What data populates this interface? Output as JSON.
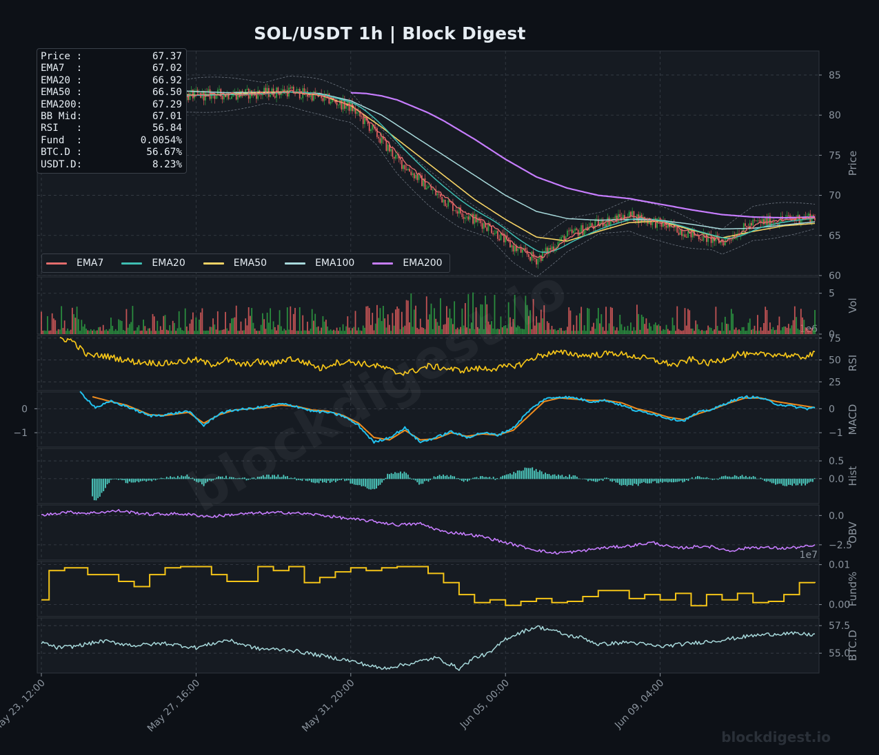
{
  "title": "SOL/USDT  1h  |  Block Digest",
  "footer": "blockdigest.io",
  "watermark": "blockdigest.io",
  "colors": {
    "background": "#0d1117",
    "panel": "#161b22",
    "grid": "#3a4049",
    "axis_text": "#8b949e",
    "candle_up": "#2ea043",
    "candle_down": "#e05d5d",
    "ema7": "#e46d6d",
    "ema20": "#3fbfb3",
    "ema50": "#f6d365",
    "ema100": "#a8dadc",
    "ema200": "#c77dff",
    "rsi": "#f5c518",
    "macd": "#22c1ee",
    "signal": "#f08c1e",
    "hist": "#4fd1c5",
    "obv": "#c77dff",
    "funding": "#f5c518",
    "btcd": "#a8dadc"
  },
  "info": [
    {
      "label": "Price :",
      "value": "67.37"
    },
    {
      "label": "EMA7  :",
      "value": "67.02"
    },
    {
      "label": "EMA20 :",
      "value": "66.92"
    },
    {
      "label": "EMA50 :",
      "value": "66.50"
    },
    {
      "label": "EMA200:",
      "value": "67.29"
    },
    {
      "label": "BB Mid:",
      "value": "67.01"
    },
    {
      "label": "RSI   :",
      "value": "56.84"
    },
    {
      "label": "Fund  :",
      "value": "0.0054%"
    },
    {
      "label": "BTC.D :",
      "value": "56.67%"
    },
    {
      "label": "USDT.D:",
      "value": "8.23%"
    }
  ],
  "legend": [
    {
      "label": "EMA7",
      "color": "#e46d6d"
    },
    {
      "label": "EMA20",
      "color": "#3fbfb3"
    },
    {
      "label": "EMA50",
      "color": "#f6d365"
    },
    {
      "label": "EMA100",
      "color": "#a8dadc"
    },
    {
      "label": "EMA200",
      "color": "#c77dff"
    }
  ],
  "chart_data": {
    "type": "line",
    "x_ticks": [
      "May 23, 12:00",
      "May 27, 16:00",
      "May 31, 20:00",
      "Jun 05, 00:00",
      "Jun 09, 04:00"
    ],
    "x_range_hours": [
      0,
      500
    ],
    "panels": [
      {
        "name": "price",
        "ylabel": "Price",
        "ylim": [
          60,
          88
        ],
        "ticks": [
          "60",
          "65",
          "70",
          "75",
          "80",
          "85"
        ],
        "tick_values": [
          60,
          65,
          70,
          75,
          80,
          85
        ],
        "series": [
          {
            "name": "Close",
            "x": [
              0,
              20,
              40,
              60,
              80,
              100,
              120,
              140,
              160,
              180,
              200,
              215,
              230,
              250,
              270,
              290,
              305,
              320,
              340,
              360,
              380,
              400,
              420,
              440,
              460,
              480,
              500
            ],
            "values": [
              84.5,
              84.8,
              84.0,
              83.5,
              82.2,
              82.5,
              82.6,
              82.7,
              83.0,
              82.3,
              81.0,
              78.0,
              74.5,
              71.0,
              68.0,
              66.0,
              63.5,
              62.0,
              65.0,
              66.5,
              67.5,
              66.5,
              65.2,
              64.2,
              66.5,
              67.0,
              67.37
            ]
          },
          {
            "name": "EMA50",
            "x": [
              0,
              20,
              40,
              60,
              80,
              100,
              120,
              140,
              160,
              180,
              200,
              220,
              240,
              260,
              280,
              300,
              320,
              340,
              360,
              380,
              400,
              420,
              440,
              460,
              480,
              500
            ],
            "values": [
              84.4,
              84.5,
              84.2,
              83.3,
              82.6,
              82.5,
              82.6,
              82.8,
              82.9,
              82.5,
              81.2,
              78.5,
              75.5,
              72.5,
              69.5,
              67.0,
              64.8,
              64.3,
              65.5,
              66.6,
              66.8,
              65.7,
              64.7,
              65.5,
              66.2,
              66.5
            ]
          },
          {
            "name": "EMA100",
            "x": [
              0,
              40,
              80,
              120,
              160,
              180,
              200,
              220,
              240,
              260,
              280,
              300,
              320,
              340,
              360,
              380,
              400,
              420,
              440,
              460,
              480,
              500
            ],
            "values": [
              84.6,
              84.4,
              83.1,
              82.8,
              82.9,
              82.7,
              81.8,
              80.0,
              77.5,
              75.0,
              72.5,
              70.0,
              68.0,
              67.1,
              66.9,
              67.0,
              66.9,
              66.4,
              65.8,
              65.9,
              66.3,
              66.7
            ]
          },
          {
            "name": "EMA200",
            "x": [
              200,
              210,
              220,
              230,
              240,
              250,
              260,
              280,
              300,
              320,
              340,
              360,
              380,
              400,
              420,
              440,
              460,
              480,
              500
            ],
            "values": [
              82.8,
              82.7,
              82.4,
              81.9,
              81.1,
              80.3,
              79.3,
              77.0,
              74.5,
              72.3,
              70.9,
              70.0,
              69.6,
              68.9,
              68.2,
              67.6,
              67.3,
              67.2,
              67.29
            ]
          }
        ]
      },
      {
        "name": "volume",
        "ylabel": "Vol",
        "unit_label": "1e6",
        "ylim": [
          0,
          7
        ],
        "ticks": [
          "0",
          "5"
        ],
        "tick_values": [
          0,
          5
        ]
      },
      {
        "name": "rsi",
        "ylabel": "RSI",
        "ylim": [
          15,
          78
        ],
        "ticks": [
          "25",
          "50",
          "75"
        ],
        "tick_values": [
          25,
          50,
          75
        ],
        "series": [
          {
            "name": "RSI",
            "x": [
              12,
              20,
              30,
              40,
              60,
              80,
              100,
              110,
              120,
              130,
              140,
              150,
              160,
              175,
              180,
              190,
              200,
              210,
              220,
              230,
              240,
              250,
              260,
              270,
              280,
              290,
              300,
              310,
              320,
              330,
              340,
              350,
              360,
              370,
              380,
              390,
              400,
              410,
              420,
              430,
              440,
              450,
              460,
              470,
              480,
              490,
              500
            ],
            "values": [
              75,
              72,
              55,
              55,
              48,
              46,
              50,
              45,
              50,
              44,
              48,
              45,
              52,
              45,
              40,
              47,
              48,
              45,
              42,
              35,
              37,
              43,
              41,
              38,
              40,
              40,
              42,
              45,
              54,
              58,
              58,
              55,
              56,
              58,
              55,
              52,
              48,
              44,
              51,
              46,
              50,
              57,
              55,
              57,
              56,
              53,
              56.84
            ]
          }
        ]
      },
      {
        "name": "macd",
        "ylabel": "MACD",
        "ylim": [
          -1.6,
          0.7
        ],
        "ticks": [
          "−1",
          "0"
        ],
        "tick_values": [
          -1,
          0
        ],
        "series": [
          {
            "name": "MACD",
            "x": [
              25,
              35,
              45,
              55,
              70,
              80,
              95,
              105,
              115,
              125,
              135,
              145,
              155,
              165,
              175,
              185,
              195,
              205,
              215,
              225,
              235,
              245,
              255,
              265,
              275,
              285,
              295,
              305,
              315,
              325,
              335,
              345,
              355,
              365,
              375,
              385,
              395,
              405,
              415,
              425,
              435,
              445,
              455,
              465,
              475,
              485,
              495,
              500
            ],
            "values": [
              0.7,
              0.05,
              0.3,
              0.1,
              -0.3,
              -0.25,
              -0.1,
              -0.7,
              -0.2,
              -0.05,
              0.0,
              0.1,
              0.2,
              0.1,
              -0.1,
              -0.15,
              -0.3,
              -0.7,
              -1.4,
              -1.2,
              -0.8,
              -1.4,
              -1.2,
              -0.95,
              -1.2,
              -1.0,
              -1.1,
              -0.8,
              -0.1,
              0.4,
              0.5,
              0.45,
              0.3,
              0.35,
              0.15,
              -0.1,
              -0.2,
              -0.4,
              -0.5,
              -0.15,
              0.0,
              0.3,
              0.5,
              0.45,
              0.2,
              0.1,
              0.0,
              0.05
            ]
          },
          {
            "name": "Signal",
            "x": [
              33,
              45,
              55,
              70,
              80,
              95,
              105,
              115,
              125,
              135,
              145,
              155,
              165,
              175,
              185,
              195,
              205,
              215,
              225,
              235,
              245,
              255,
              265,
              275,
              285,
              295,
              305,
              315,
              325,
              335,
              345,
              355,
              365,
              375,
              385,
              395,
              405,
              415,
              425,
              435,
              445,
              455,
              465,
              475,
              485,
              495,
              500
            ],
            "values": [
              0.5,
              0.3,
              0.15,
              -0.25,
              -0.28,
              -0.15,
              -0.6,
              -0.25,
              -0.05,
              0.0,
              0.05,
              0.15,
              0.1,
              -0.05,
              -0.1,
              -0.28,
              -0.6,
              -1.2,
              -1.3,
              -0.9,
              -1.3,
              -1.25,
              -1.0,
              -1.15,
              -1.05,
              -1.1,
              -0.9,
              -0.3,
              0.3,
              0.45,
              0.4,
              0.35,
              0.35,
              0.25,
              0.0,
              -0.15,
              -0.35,
              -0.45,
              -0.2,
              0.0,
              0.25,
              0.45,
              0.45,
              0.3,
              0.2,
              0.1,
              0.05
            ]
          }
        ]
      },
      {
        "name": "histogram",
        "ylabel": "Hist",
        "ylim": [
          -0.7,
          0.85
        ],
        "ticks": [
          "0.0",
          "0.5"
        ],
        "tick_values": [
          0,
          0.5
        ]
      },
      {
        "name": "obv",
        "ylabel": "OBV",
        "unit_label": "1e7",
        "ylim": [
          -3.8,
          0.9
        ],
        "ticks": [
          "−2.5",
          "0.0"
        ],
        "tick_values": [
          -2.5,
          0
        ],
        "series": [
          {
            "name": "OBV",
            "x": [
              0,
              15,
              30,
              50,
              70,
              90,
              110,
              125,
              140,
              160,
              180,
              200,
              215,
              230,
              245,
              260,
              270,
              285,
              300,
              315,
              330,
              345,
              360,
              380,
              395,
              410,
              430,
              445,
              460,
              480,
              500
            ],
            "values": [
              0.0,
              0.3,
              0.2,
              0.4,
              0.1,
              0.15,
              -0.1,
              0.1,
              0.2,
              0.25,
              0.05,
              -0.3,
              -0.5,
              -0.8,
              -0.7,
              -1.4,
              -1.5,
              -1.8,
              -2.3,
              -2.8,
              -3.2,
              -3.1,
              -2.8,
              -2.6,
              -2.3,
              -2.8,
              -2.6,
              -3.0,
              -2.7,
              -2.8,
              -2.6
            ]
          }
        ]
      },
      {
        "name": "funding",
        "ylabel": "Fund%",
        "ylim": [
          -0.003,
          0.0108
        ],
        "ticks": [
          "0.00",
          "0.01"
        ],
        "tick_values": [
          0,
          0.01
        ],
        "steps": {
          "x": [
            0,
            5,
            10,
            15,
            30,
            50,
            60,
            70,
            80,
            90,
            100,
            105,
            110,
            120,
            130,
            140,
            150,
            160,
            170,
            180,
            190,
            200,
            210,
            220,
            230,
            240,
            250,
            260,
            270,
            280,
            290,
            300,
            310,
            320,
            330,
            340,
            350,
            360,
            370,
            380,
            390,
            400,
            410,
            420,
            430,
            440,
            450,
            460,
            470,
            480,
            490,
            500
          ],
          "values": [
            0.0012,
            0.0085,
            0.0085,
            0.0092,
            0.0075,
            0.0058,
            0.0045,
            0.0075,
            0.0092,
            0.0095,
            0.0095,
            0.0095,
            0.0075,
            0.0058,
            0.0058,
            0.0095,
            0.0085,
            0.0095,
            0.0055,
            0.0068,
            0.0082,
            0.0092,
            0.0085,
            0.0092,
            0.0095,
            0.0095,
            0.0078,
            0.0055,
            0.0025,
            0.0005,
            0.0012,
            -0.0002,
            0.0008,
            0.0015,
            0.0005,
            0.0008,
            0.002,
            0.0035,
            0.0035,
            0.0015,
            0.0025,
            0.0012,
            0.0028,
            -0.0003,
            0.0025,
            0.0012,
            0.0028,
            0.0005,
            0.0008,
            0.0025,
            0.0055,
            0.0054
          ]
        }
      },
      {
        "name": "btcd",
        "ylabel": "BTC.D",
        "ylim": [
          53.2,
          58.2
        ],
        "ticks": [
          "55.0",
          "57.5"
        ],
        "tick_values": [
          55,
          57.5
        ],
        "series": [
          {
            "name": "BTC.D",
            "x": [
              0,
              10,
              20,
              40,
              60,
              80,
              100,
              120,
              140,
              160,
              180,
              200,
              220,
              240,
              255,
              270,
              280,
              290,
              300,
              310,
              320,
              330,
              340,
              350,
              360,
              380,
              400,
              420,
              440,
              460,
              480,
              500
            ],
            "values": [
              56.0,
              55.5,
              55.6,
              56.1,
              55.7,
              55.9,
              55.5,
              56.2,
              55.4,
              55.3,
              54.8,
              54.3,
              53.6,
              54.1,
              54.6,
              53.6,
              54.6,
              55.0,
              56.3,
              56.9,
              57.4,
              57.1,
              56.6,
              56.4,
              55.8,
              56.0,
              55.6,
              55.9,
              56.2,
              56.6,
              56.8,
              56.67
            ]
          }
        ]
      }
    ]
  }
}
